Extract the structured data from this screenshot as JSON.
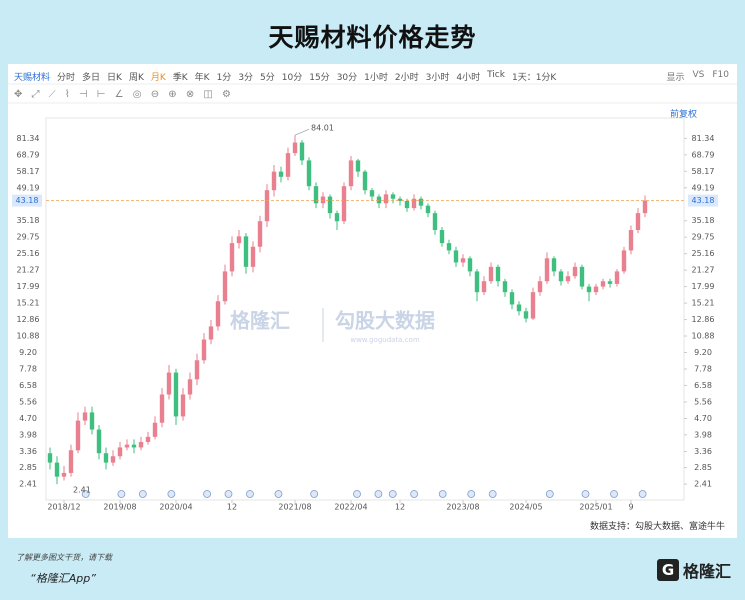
{
  "title": "天赐材料价格走势",
  "toolbar": {
    "items": [
      "天赐材料",
      "分时",
      "多日",
      "日K",
      "周K",
      "月K",
      "季K",
      "年K",
      "1分",
      "3分",
      "5分",
      "10分",
      "15分",
      "30分",
      "1小时",
      "2小时",
      "3小时",
      "4小时",
      "Tick",
      "1天：1分K"
    ],
    "display": "显示",
    "vs": "VS",
    "f10": "F10",
    "adjust": "前复权"
  },
  "source": "数据支持：勾股大数据、富途牛牛",
  "footer": {
    "note": "了解更多图文干货，请下载",
    "app": "“格隆汇App”",
    "logo": "格隆汇"
  },
  "watermark": {
    "left": "格隆汇",
    "right": "勾股大数据",
    "url": "www.gogudata.com"
  },
  "chart_data": {
    "type": "candlestick",
    "log_y": true,
    "up_color": "#e8808f",
    "down_color": "#3fbf7f",
    "price_line_color": "#f0a050",
    "ylim": [
      2.05,
      90.4
    ],
    "yticks": [
      81.34,
      68.79,
      58.17,
      49.19,
      35.18,
      29.75,
      25.16,
      21.27,
      17.99,
      15.21,
      12.86,
      10.88,
      {
        "value": 9.2,
        "label": "9.20"
      },
      7.78,
      6.58,
      5.56,
      {
        "value": 4.7,
        "label": "4.70"
      },
      3.98,
      3.36,
      2.85,
      2.41
    ],
    "xticks": [
      {
        "value": 2,
        "label": "2018/12"
      },
      {
        "value": 10,
        "label": "2019/08"
      },
      {
        "value": 18,
        "label": "2020/04"
      },
      {
        "value": 26,
        "label": "12"
      },
      {
        "value": 35,
        "label": "2021/08"
      },
      {
        "value": 43,
        "label": "2022/04"
      },
      {
        "value": 50,
        "label": "12"
      },
      {
        "value": 59,
        "label": "2023/08"
      },
      {
        "value": 68,
        "label": "2024/05"
      },
      {
        "value": 78,
        "label": "2025/01"
      },
      {
        "value": 83,
        "label": "9"
      }
    ],
    "open": [
      3.3,
      3.0,
      2.6,
      2.7,
      3.4,
      4.6,
      5.0,
      4.2,
      3.3,
      3.0,
      3.2,
      3.5,
      3.6,
      3.5,
      3.7,
      3.9,
      4.5,
      6.0,
      7.5,
      4.8,
      6.0,
      7.0,
      8.5,
      10.5,
      12.0,
      15.5,
      21.0,
      28.0,
      30.0,
      22.0,
      27.0,
      35.0,
      48.0,
      58.0,
      55.0,
      70.0,
      78.0,
      65.0,
      50.0,
      42.0,
      45.0,
      38.0,
      35.0,
      50.0,
      65.0,
      58.0,
      48.0,
      45.0,
      42.0,
      46.0,
      44.0,
      43.0,
      40.0,
      44.0,
      41.0,
      38.0,
      32.0,
      28.0,
      26.0,
      23.0,
      24.0,
      21.0,
      17.0,
      19.0,
      22.0,
      19.0,
      17.0,
      15.0,
      14.0,
      13.0,
      17.0,
      19.0,
      24.0,
      21.0,
      19.0,
      20.0,
      22.0,
      18.0,
      17.0,
      18.0,
      19.0,
      18.5,
      21.0,
      26.0,
      32.0,
      38.0
    ],
    "high": [
      3.5,
      3.2,
      2.9,
      3.6,
      5.0,
      5.3,
      5.3,
      4.4,
      3.5,
      3.4,
      3.7,
      3.8,
      3.8,
      3.9,
      4.1,
      4.8,
      6.4,
      8.1,
      7.8,
      6.4,
      7.5,
      9.1,
      11.2,
      12.8,
      16.5,
      22.5,
      30,
      32,
      31,
      28.5,
      37,
      51,
      62,
      61,
      74,
      84.01,
      80,
      67,
      52,
      47,
      46,
      39,
      52,
      68,
      66,
      59,
      49,
      46,
      48,
      47,
      45,
      44,
      46,
      45,
      42,
      39,
      33,
      29,
      27,
      25,
      24.5,
      21.5,
      20,
      23,
      22.5,
      19.5,
      17.5,
      15.5,
      14.5,
      17.8,
      20,
      25.5,
      24.5,
      21.5,
      21,
      23,
      22.5,
      18.5,
      18.5,
      19.5,
      19.5,
      21.5,
      27,
      33.5,
      40,
      45.5
    ],
    "low": [
      2.8,
      2.41,
      2.5,
      2.6,
      3.3,
      4.4,
      4.0,
      3.1,
      2.8,
      2.9,
      3.1,
      3.4,
      3.3,
      3.4,
      3.6,
      3.8,
      4.3,
      5.7,
      4.4,
      4.6,
      5.7,
      6.6,
      8.2,
      10.0,
      11.5,
      15,
      20,
      26.5,
      20.5,
      20.8,
      25.5,
      33,
      45,
      52,
      53,
      68,
      62,
      48,
      40,
      40,
      36,
      32,
      34,
      48,
      55,
      46,
      43,
      40,
      40,
      42,
      41,
      38.5,
      39,
      39.5,
      36.5,
      30.5,
      27,
      25,
      22,
      22,
      20,
      15.5,
      16.5,
      18.5,
      18,
      16.2,
      14.3,
      13.4,
      12.5,
      12.8,
      16.4,
      18.5,
      20,
      18.2,
      18.5,
      19.5,
      17.5,
      15.5,
      16.5,
      17.5,
      17.8,
      18,
      20.5,
      25,
      31,
      36.5
    ],
    "close": [
      3.0,
      2.6,
      2.7,
      3.4,
      4.6,
      5.0,
      4.2,
      3.3,
      3.0,
      3.2,
      3.5,
      3.6,
      3.5,
      3.7,
      3.9,
      4.5,
      6.0,
      7.5,
      4.8,
      6.0,
      7.0,
      8.5,
      10.5,
      12.0,
      15.5,
      21.0,
      28.0,
      30.0,
      22.0,
      27.0,
      35.0,
      48.0,
      58.0,
      55.0,
      70.0,
      78.0,
      65.0,
      50.0,
      42.0,
      45.0,
      38.0,
      35.0,
      50.0,
      65.0,
      58.0,
      48.0,
      45.0,
      42.0,
      46.0,
      44.0,
      43.0,
      40.0,
      44.0,
      41.0,
      38.0,
      32.0,
      28.0,
      26.0,
      23.0,
      24.0,
      21.0,
      17.0,
      19.0,
      22.0,
      19.0,
      17.0,
      15.0,
      14.0,
      13.0,
      17.0,
      19.0,
      24.0,
      21.0,
      19.0,
      20.0,
      22.0,
      18.0,
      17.0,
      18.0,
      19.0,
      18.5,
      21.0,
      26.0,
      32.0,
      38.0,
      43.18
    ]
  }
}
